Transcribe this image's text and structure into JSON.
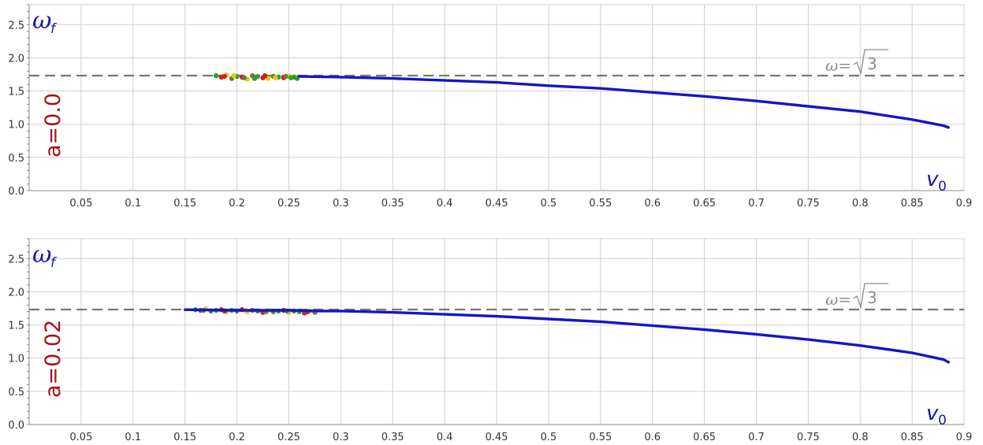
{
  "chart_data": [
    {
      "type": "line",
      "panel": "top",
      "param_label": "a=0.0",
      "xlabel": "v",
      "xlabel_sub": "0",
      "ylabel": "ω",
      "ylabel_sub": "f",
      "xlim": [
        0,
        0.9
      ],
      "ylim": [
        0,
        2.8
      ],
      "x_ticks": [
        "0.05",
        "0.1",
        "0.15",
        "0.2",
        "0.25",
        "0.3",
        "0.35",
        "0.4",
        "0.45",
        "0.5",
        "0.55",
        "0.6",
        "0.65",
        "0.7",
        "0.75",
        "0.8",
        "0.85",
        "0.9"
      ],
      "y_ticks": [
        "0.0",
        "0.5",
        "1.0",
        "1.5",
        "2.0",
        "2.5"
      ],
      "grid": true,
      "reference_line": {
        "y": 1.732,
        "label_prefix": "ω=",
        "label_radicand": "3",
        "style": "dashed",
        "color": "#777777"
      },
      "series": [
        {
          "color": "#1515c9",
          "x": [
            0.26,
            0.3,
            0.35,
            0.4,
            0.45,
            0.5,
            0.55,
            0.6,
            0.65,
            0.7,
            0.75,
            0.8,
            0.85,
            0.88,
            0.885
          ],
          "y": [
            1.72,
            1.71,
            1.69,
            1.66,
            1.63,
            1.58,
            1.54,
            1.48,
            1.42,
            1.35,
            1.27,
            1.19,
            1.07,
            0.98,
            0.95
          ]
        }
      ],
      "scatter": {
        "colors": [
          "#2e9e2e",
          "#cc1f1f",
          "#e6c619",
          "#6b7b2e"
        ],
        "x": [
          0.18,
          0.185,
          0.19,
          0.195,
          0.2,
          0.205,
          0.21,
          0.215,
          0.22,
          0.225,
          0.23,
          0.235,
          0.24,
          0.245,
          0.25,
          0.255,
          0.258,
          0.188,
          0.197,
          0.207,
          0.217,
          0.227,
          0.237,
          0.247,
          0.252
        ],
        "y": [
          1.73,
          1.71,
          1.74,
          1.69,
          1.72,
          1.71,
          1.68,
          1.73,
          1.72,
          1.7,
          1.69,
          1.72,
          1.71,
          1.7,
          1.72,
          1.71,
          1.69,
          1.72,
          1.73,
          1.7,
          1.69,
          1.73,
          1.7,
          1.72,
          1.7
        ]
      }
    },
    {
      "type": "line",
      "panel": "bottom",
      "param_label": "a=0.02",
      "xlabel": "v",
      "xlabel_sub": "0",
      "ylabel": "ω",
      "ylabel_sub": "f",
      "xlim": [
        0,
        0.9
      ],
      "ylim": [
        0,
        2.8
      ],
      "x_ticks": [
        "0.05",
        "0.1",
        "0.15",
        "0.2",
        "0.25",
        "0.3",
        "0.35",
        "0.4",
        "0.45",
        "0.5",
        "0.55",
        "0.6",
        "0.65",
        "0.7",
        "0.75",
        "0.8",
        "0.85",
        "0.9"
      ],
      "y_ticks": [
        "0.0",
        "0.5",
        "1.0",
        "1.5",
        "2.0",
        "2.5"
      ],
      "grid": true,
      "reference_line": {
        "y": 1.732,
        "label_prefix": "ω=",
        "label_radicand": "3",
        "style": "dashed",
        "color": "#777777"
      },
      "series": [
        {
          "color": "#1515c9",
          "x": [
            0.15,
            0.2,
            0.25,
            0.28,
            0.3,
            0.35,
            0.4,
            0.45,
            0.5,
            0.55,
            0.6,
            0.65,
            0.7,
            0.75,
            0.8,
            0.85,
            0.88,
            0.885
          ],
          "y": [
            1.73,
            1.72,
            1.72,
            1.71,
            1.71,
            1.69,
            1.66,
            1.63,
            1.59,
            1.55,
            1.49,
            1.43,
            1.36,
            1.28,
            1.19,
            1.08,
            0.98,
            0.94
          ]
        }
      ],
      "scatter": {
        "colors": [
          "#2e9e2e",
          "#cc1f1f",
          "#e6c619",
          "#6b7b2e"
        ],
        "x": [
          0.16,
          0.165,
          0.17,
          0.175,
          0.18,
          0.185,
          0.19,
          0.195,
          0.2,
          0.205,
          0.21,
          0.215,
          0.22,
          0.225,
          0.23,
          0.235,
          0.24,
          0.245,
          0.25,
          0.255,
          0.26,
          0.265,
          0.27,
          0.275,
          0.168,
          0.188,
          0.208,
          0.228,
          0.248,
          0.268
        ],
        "y": [
          1.73,
          1.72,
          1.74,
          1.71,
          1.72,
          1.73,
          1.7,
          1.72,
          1.71,
          1.73,
          1.7,
          1.72,
          1.71,
          1.69,
          1.72,
          1.7,
          1.71,
          1.72,
          1.69,
          1.71,
          1.7,
          1.68,
          1.71,
          1.69,
          1.72,
          1.71,
          1.72,
          1.7,
          1.71,
          1.7
        ]
      }
    }
  ]
}
